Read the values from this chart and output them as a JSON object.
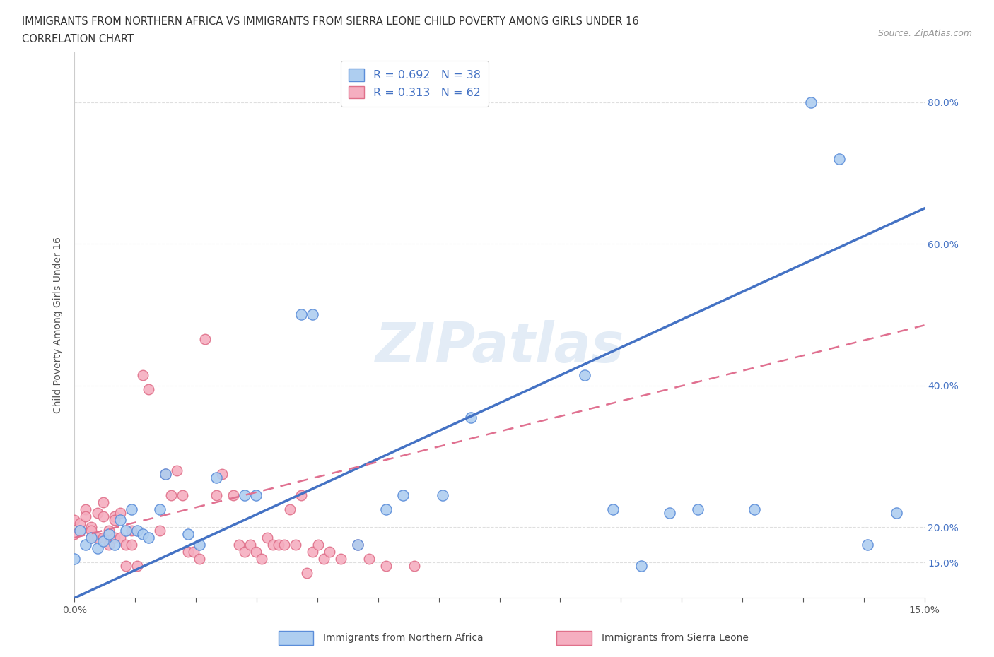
{
  "title_line1": "IMMIGRANTS FROM NORTHERN AFRICA VS IMMIGRANTS FROM SIERRA LEONE CHILD POVERTY AMONG GIRLS UNDER 16",
  "title_line2": "CORRELATION CHART",
  "source_text": "Source: ZipAtlas.com",
  "ylabel": "Child Poverty Among Girls Under 16",
  "series1_name": "Immigrants from Northern Africa",
  "series2_name": "Immigrants from Sierra Leone",
  "series1_R": 0.692,
  "series1_N": 38,
  "series2_R": 0.313,
  "series2_N": 62,
  "series1_color": "#aecef0",
  "series2_color": "#f5aec0",
  "series1_edge_color": "#5b8dd9",
  "series2_edge_color": "#e0708a",
  "series1_line_color": "#4472c4",
  "series2_line_color": "#e07090",
  "watermark_color": "#ccddef",
  "xlim": [
    0.0,
    0.15
  ],
  "ylim": [
    0.1,
    0.87
  ],
  "grid_color": "#d8d8d8",
  "background_color": "#ffffff",
  "series1_x": [
    0.0,
    0.001,
    0.002,
    0.003,
    0.004,
    0.005,
    0.006,
    0.007,
    0.008,
    0.009,
    0.01,
    0.011,
    0.012,
    0.013,
    0.015,
    0.016,
    0.02,
    0.022,
    0.025,
    0.03,
    0.032,
    0.04,
    0.042,
    0.05,
    0.055,
    0.058,
    0.065,
    0.07,
    0.09,
    0.095,
    0.1,
    0.105,
    0.11,
    0.12,
    0.13,
    0.135,
    0.14,
    0.145
  ],
  "series1_y": [
    0.155,
    0.195,
    0.175,
    0.185,
    0.17,
    0.18,
    0.19,
    0.175,
    0.21,
    0.195,
    0.225,
    0.195,
    0.19,
    0.185,
    0.225,
    0.275,
    0.19,
    0.175,
    0.27,
    0.245,
    0.245,
    0.5,
    0.5,
    0.175,
    0.225,
    0.245,
    0.245,
    0.355,
    0.415,
    0.225,
    0.145,
    0.22,
    0.225,
    0.225,
    0.8,
    0.72,
    0.175,
    0.22
  ],
  "series2_x": [
    0.0,
    0.0,
    0.001,
    0.001,
    0.002,
    0.002,
    0.003,
    0.003,
    0.003,
    0.004,
    0.004,
    0.005,
    0.005,
    0.005,
    0.006,
    0.006,
    0.007,
    0.007,
    0.007,
    0.008,
    0.008,
    0.009,
    0.009,
    0.01,
    0.01,
    0.011,
    0.012,
    0.013,
    0.015,
    0.016,
    0.017,
    0.018,
    0.019,
    0.02,
    0.021,
    0.022,
    0.023,
    0.025,
    0.026,
    0.028,
    0.029,
    0.03,
    0.031,
    0.032,
    0.033,
    0.034,
    0.035,
    0.036,
    0.037,
    0.038,
    0.039,
    0.04,
    0.041,
    0.042,
    0.043,
    0.044,
    0.045,
    0.047,
    0.05,
    0.052,
    0.055,
    0.06
  ],
  "series2_y": [
    0.21,
    0.19,
    0.205,
    0.195,
    0.225,
    0.215,
    0.2,
    0.195,
    0.185,
    0.22,
    0.185,
    0.235,
    0.215,
    0.185,
    0.195,
    0.175,
    0.215,
    0.21,
    0.185,
    0.185,
    0.22,
    0.145,
    0.175,
    0.195,
    0.175,
    0.145,
    0.415,
    0.395,
    0.195,
    0.275,
    0.245,
    0.28,
    0.245,
    0.165,
    0.165,
    0.155,
    0.465,
    0.245,
    0.275,
    0.245,
    0.175,
    0.165,
    0.175,
    0.165,
    0.155,
    0.185,
    0.175,
    0.175,
    0.175,
    0.225,
    0.175,
    0.245,
    0.135,
    0.165,
    0.175,
    0.155,
    0.165,
    0.155,
    0.175,
    0.155,
    0.145,
    0.145
  ],
  "regline1_x0": 0.0,
  "regline1_y0": 0.1,
  "regline1_x1": 0.15,
  "regline1_y1": 0.65,
  "regline2_x0": 0.0,
  "regline2_y0": 0.185,
  "regline2_x1": 0.15,
  "regline2_y1": 0.485
}
